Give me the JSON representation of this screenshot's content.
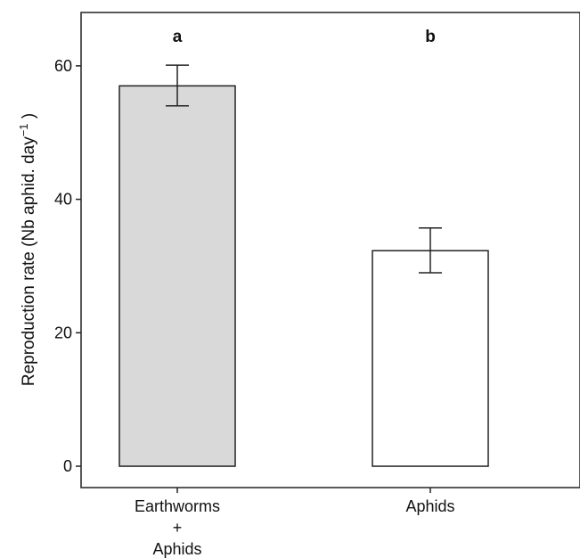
{
  "chart_data": {
    "type": "bar",
    "categories": [
      [
        "Earthworms",
        "+",
        "Aphids"
      ],
      [
        "Aphids"
      ]
    ],
    "values": [
      57,
      32.3
    ],
    "error_low": [
      54,
      29
    ],
    "error_high": [
      60.1,
      35.7
    ],
    "bar_fill": [
      "#d9d9d9",
      "#ffffff"
    ],
    "significance": [
      "a",
      "b"
    ],
    "title": "",
    "xlabel": "",
    "ylabel_main": "Reproduction rate (Nb aphid. day",
    "ylabel_sup": "−1",
    "ylabel_close": " )",
    "ylim": [
      -3.2,
      68
    ],
    "yticks": [
      0,
      20,
      40,
      60
    ],
    "grid": false,
    "legend": "none"
  }
}
